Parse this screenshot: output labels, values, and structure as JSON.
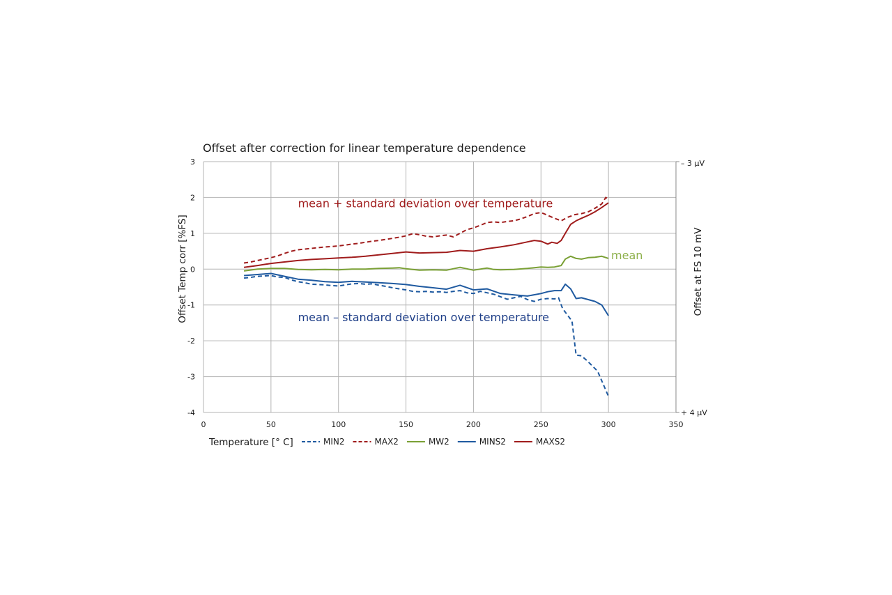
{
  "chart_data": {
    "type": "line",
    "title": "Offset after correction for linear temperature dependence",
    "xlabel": "Temperature [° C]",
    "ylabel": "Offset Temp corr [%FS]",
    "y2label": "Offset at FS 10 mV",
    "xlim": [
      0,
      350
    ],
    "ylim": [
      -4,
      3
    ],
    "x_ticks": [
      "0",
      "50",
      "100",
      "150",
      "200",
      "250",
      "300",
      "350"
    ],
    "y_ticks": [
      "3",
      "2",
      "1",
      "0",
      "-1",
      "-2",
      "-3",
      "-4"
    ],
    "y2_ticks": {
      "top": "– 3 µV",
      "bottom": "+ 4 µV"
    },
    "grid": true,
    "legend_position": "bottom",
    "colors": {
      "blue": "#1f5aa0",
      "red": "#a01c1c",
      "green": "#7aa035",
      "grid": "#b4b4b4"
    },
    "annotations": [
      {
        "text": "mean + standard deviation over temperature",
        "x": 70,
        "y": 1.73,
        "color": "#a01c1c"
      },
      {
        "text": "mean",
        "x": 302,
        "y": 0.28,
        "color": "#8db04a"
      },
      {
        "text": "mean – standard deviation over temperature",
        "x": 70,
        "y": -1.45,
        "color": "#1f3f88"
      }
    ],
    "series": [
      {
        "name": "MIN2",
        "color": "#1f5aa0",
        "dash": true,
        "x": [
          30,
          35,
          40,
          45,
          50,
          55,
          60,
          65,
          70,
          75,
          80,
          85,
          90,
          95,
          100,
          105,
          110,
          115,
          120,
          125,
          130,
          135,
          140,
          145,
          150,
          155,
          160,
          165,
          170,
          175,
          180,
          185,
          190,
          195,
          200,
          205,
          210,
          215,
          220,
          225,
          230,
          235,
          240,
          245,
          250,
          255,
          260,
          263,
          266,
          270,
          273,
          276,
          280,
          284,
          288,
          292,
          296,
          300
        ],
        "values": [
          -0.25,
          -0.23,
          -0.2,
          -0.19,
          -0.18,
          -0.22,
          -0.23,
          -0.3,
          -0.35,
          -0.38,
          -0.42,
          -0.43,
          -0.44,
          -0.46,
          -0.47,
          -0.44,
          -0.41,
          -0.4,
          -0.42,
          -0.41,
          -0.45,
          -0.48,
          -0.52,
          -0.55,
          -0.58,
          -0.62,
          -0.63,
          -0.62,
          -0.64,
          -0.63,
          -0.65,
          -0.62,
          -0.6,
          -0.66,
          -0.68,
          -0.62,
          -0.66,
          -0.7,
          -0.77,
          -0.84,
          -0.8,
          -0.76,
          -0.85,
          -0.9,
          -0.84,
          -0.82,
          -0.83,
          -0.8,
          -1.1,
          -1.3,
          -1.45,
          -2.4,
          -2.42,
          -2.55,
          -2.7,
          -2.85,
          -3.2,
          -3.55
        ]
      },
      {
        "name": "MAX2",
        "color": "#a01c1c",
        "dash": true,
        "x": [
          30,
          35,
          40,
          45,
          50,
          55,
          60,
          65,
          70,
          75,
          80,
          85,
          90,
          95,
          100,
          105,
          110,
          115,
          120,
          125,
          130,
          135,
          140,
          145,
          150,
          155,
          160,
          165,
          170,
          175,
          180,
          185,
          190,
          195,
          200,
          205,
          210,
          215,
          220,
          225,
          230,
          235,
          240,
          245,
          250,
          255,
          260,
          265,
          270,
          275,
          280,
          285,
          290,
          295,
          298,
          300
        ],
        "values": [
          0.17,
          0.2,
          0.24,
          0.28,
          0.32,
          0.37,
          0.44,
          0.5,
          0.54,
          0.56,
          0.58,
          0.6,
          0.62,
          0.63,
          0.65,
          0.67,
          0.7,
          0.72,
          0.75,
          0.78,
          0.8,
          0.83,
          0.86,
          0.89,
          0.93,
          0.99,
          0.96,
          0.92,
          0.9,
          0.93,
          0.95,
          0.9,
          1.0,
          1.1,
          1.15,
          1.22,
          1.3,
          1.32,
          1.3,
          1.33,
          1.35,
          1.4,
          1.47,
          1.55,
          1.58,
          1.5,
          1.42,
          1.35,
          1.45,
          1.52,
          1.55,
          1.6,
          1.7,
          1.82,
          2.0,
          1.95
        ]
      },
      {
        "name": "MW2",
        "color": "#7aa035",
        "dash": false,
        "x": [
          30,
          40,
          50,
          60,
          70,
          80,
          90,
          100,
          110,
          120,
          130,
          140,
          145,
          150,
          160,
          170,
          180,
          190,
          200,
          210,
          215,
          220,
          230,
          240,
          250,
          255,
          260,
          265,
          268,
          272,
          276,
          280,
          285,
          290,
          295,
          300
        ],
        "values": [
          -0.05,
          0.0,
          0.02,
          0.02,
          -0.01,
          -0.02,
          -0.01,
          -0.02,
          0.0,
          0.0,
          0.02,
          0.03,
          0.04,
          0.01,
          -0.03,
          -0.02,
          -0.03,
          0.05,
          -0.03,
          0.03,
          -0.01,
          -0.02,
          -0.01,
          0.02,
          0.06,
          0.05,
          0.06,
          0.1,
          0.28,
          0.36,
          0.3,
          0.28,
          0.32,
          0.33,
          0.36,
          0.3
        ]
      },
      {
        "name": "MINS2",
        "color": "#1f5aa0",
        "dash": false,
        "x": [
          30,
          40,
          50,
          55,
          60,
          70,
          80,
          90,
          100,
          110,
          120,
          130,
          140,
          150,
          160,
          170,
          180,
          190,
          200,
          210,
          220,
          230,
          240,
          250,
          255,
          260,
          265,
          268,
          272,
          276,
          280,
          285,
          290,
          295,
          300
        ],
        "values": [
          -0.18,
          -0.15,
          -0.12,
          -0.16,
          -0.2,
          -0.28,
          -0.31,
          -0.35,
          -0.37,
          -0.34,
          -0.36,
          -0.38,
          -0.4,
          -0.43,
          -0.48,
          -0.52,
          -0.56,
          -0.45,
          -0.58,
          -0.55,
          -0.68,
          -0.72,
          -0.75,
          -0.68,
          -0.63,
          -0.6,
          -0.6,
          -0.42,
          -0.55,
          -0.82,
          -0.8,
          -0.85,
          -0.9,
          -1.0,
          -1.3
        ]
      },
      {
        "name": "MAXS2",
        "color": "#a01c1c",
        "dash": false,
        "x": [
          30,
          40,
          50,
          60,
          70,
          80,
          90,
          100,
          110,
          120,
          130,
          140,
          150,
          160,
          170,
          180,
          190,
          200,
          210,
          220,
          230,
          240,
          245,
          250,
          255,
          258,
          262,
          265,
          268,
          272,
          276,
          280,
          285,
          290,
          295,
          300
        ],
        "values": [
          0.05,
          0.1,
          0.16,
          0.2,
          0.24,
          0.27,
          0.29,
          0.31,
          0.33,
          0.36,
          0.4,
          0.44,
          0.48,
          0.45,
          0.46,
          0.47,
          0.52,
          0.5,
          0.57,
          0.62,
          0.68,
          0.76,
          0.8,
          0.78,
          0.7,
          0.75,
          0.72,
          0.8,
          1.0,
          1.25,
          1.35,
          1.42,
          1.5,
          1.6,
          1.72,
          1.85
        ]
      }
    ]
  }
}
